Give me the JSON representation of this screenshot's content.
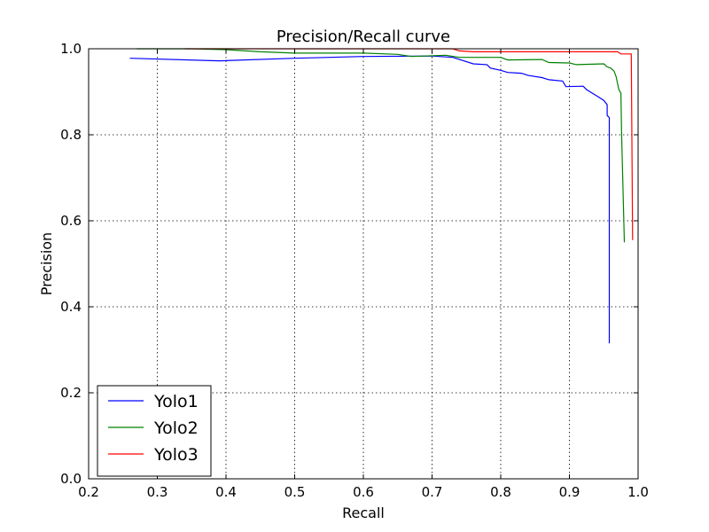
{
  "chart_data": {
    "type": "line",
    "title": "Precision/Recall curve",
    "xlabel": "Recall",
    "ylabel": "Precision",
    "xlim": [
      0.2,
      1.0
    ],
    "ylim": [
      0.0,
      1.0
    ],
    "xticks": [
      "0.2",
      "0.3",
      "0.4",
      "0.5",
      "0.6",
      "0.7",
      "0.8",
      "0.9",
      "1.0"
    ],
    "yticks": [
      "0.0",
      "0.2",
      "0.4",
      "0.6",
      "0.8",
      "1.0"
    ],
    "grid": true,
    "legend_position": "lower-left",
    "series": [
      {
        "name": "Yolo1",
        "color": "#0000ff",
        "points": [
          [
            0.26,
            0.978
          ],
          [
            0.39,
            0.972
          ],
          [
            0.5,
            0.978
          ],
          [
            0.6,
            0.982
          ],
          [
            0.7,
            0.983
          ],
          [
            0.73,
            0.98
          ],
          [
            0.74,
            0.975
          ],
          [
            0.76,
            0.965
          ],
          [
            0.78,
            0.963
          ],
          [
            0.785,
            0.955
          ],
          [
            0.8,
            0.95
          ],
          [
            0.81,
            0.945
          ],
          [
            0.83,
            0.943
          ],
          [
            0.84,
            0.938
          ],
          [
            0.86,
            0.933
          ],
          [
            0.87,
            0.928
          ],
          [
            0.89,
            0.925
          ],
          [
            0.895,
            0.912
          ],
          [
            0.92,
            0.913
          ],
          [
            0.925,
            0.905
          ],
          [
            0.94,
            0.89
          ],
          [
            0.95,
            0.88
          ],
          [
            0.955,
            0.87
          ],
          [
            0.955,
            0.845
          ],
          [
            0.958,
            0.84
          ],
          [
            0.958,
            0.315
          ]
        ]
      },
      {
        "name": "Yolo2",
        "color": "#008000",
        "points": [
          [
            0.27,
            1.0
          ],
          [
            0.35,
            1.0
          ],
          [
            0.4,
            0.998
          ],
          [
            0.45,
            0.993
          ],
          [
            0.5,
            0.99
          ],
          [
            0.6,
            0.99
          ],
          [
            0.65,
            0.987
          ],
          [
            0.67,
            0.982
          ],
          [
            0.72,
            0.985
          ],
          [
            0.74,
            0.98
          ],
          [
            0.8,
            0.98
          ],
          [
            0.81,
            0.974
          ],
          [
            0.86,
            0.975
          ],
          [
            0.87,
            0.968
          ],
          [
            0.9,
            0.967
          ],
          [
            0.91,
            0.963
          ],
          [
            0.95,
            0.965
          ],
          [
            0.955,
            0.958
          ],
          [
            0.96,
            0.955
          ],
          [
            0.965,
            0.948
          ],
          [
            0.968,
            0.935
          ],
          [
            0.972,
            0.905
          ],
          [
            0.975,
            0.897
          ],
          [
            0.976,
            0.8
          ],
          [
            0.98,
            0.55
          ]
        ]
      },
      {
        "name": "Yolo3",
        "color": "#ff0000",
        "points": [
          [
            0.34,
            1.0
          ],
          [
            0.4,
            1.0
          ],
          [
            0.73,
            1.0
          ],
          [
            0.74,
            0.995
          ],
          [
            0.76,
            0.993
          ],
          [
            0.97,
            0.993
          ],
          [
            0.975,
            0.988
          ],
          [
            0.99,
            0.988
          ],
          [
            0.992,
            0.555
          ]
        ]
      }
    ]
  }
}
